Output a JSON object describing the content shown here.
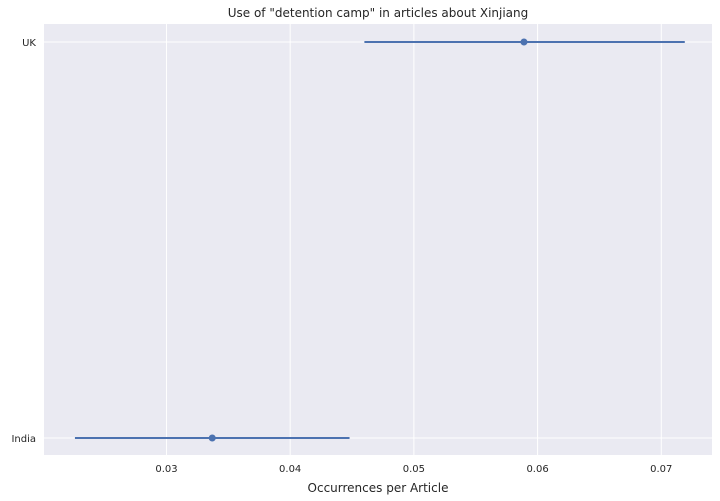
{
  "chart_data": {
    "type": "scatter",
    "title": "Use of \"detention camp\" in articles about Xinjiang",
    "xlabel": "Occurrences per Article",
    "ylabel": "",
    "xlim": [
      0.0201,
      0.0741
    ],
    "x_ticks": [
      "0.03",
      "0.04",
      "0.05",
      "0.06",
      "0.07"
    ],
    "x_tick_values": [
      0.03,
      0.04,
      0.05,
      0.06,
      0.07
    ],
    "categories": [
      "UK",
      "India"
    ],
    "points": [
      {
        "category": "UK",
        "value": 0.0589,
        "ci_low": 0.046,
        "ci_high": 0.0719
      },
      {
        "category": "India",
        "value": 0.0337,
        "ci_low": 0.0226,
        "ci_high": 0.0448
      }
    ],
    "grid": true,
    "legend": "none",
    "colors": {
      "background": "#eaeaf2",
      "grid": "#ffffff",
      "marker": "#4c72b0"
    }
  }
}
